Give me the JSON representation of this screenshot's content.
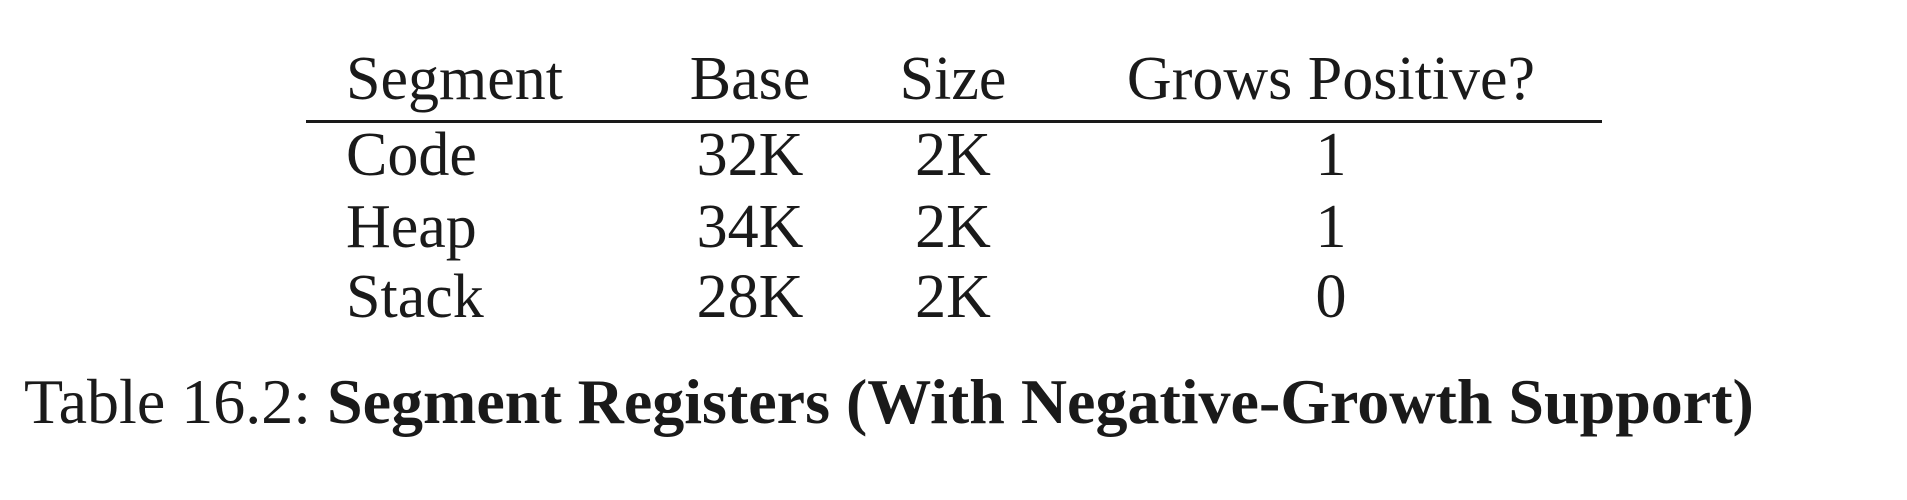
{
  "table": {
    "headers": [
      "Segment",
      "Base",
      "Size",
      "Grows Positive?"
    ],
    "rows": [
      [
        "Code",
        "32K",
        "2K",
        "1"
      ],
      [
        "Heap",
        "34K",
        "2K",
        "1"
      ],
      [
        "Stack",
        "28K",
        "2K",
        "0"
      ]
    ]
  },
  "caption": {
    "prefix": "Table 16.2: ",
    "title": "Segment Registers (With Negative-Growth Support)"
  }
}
